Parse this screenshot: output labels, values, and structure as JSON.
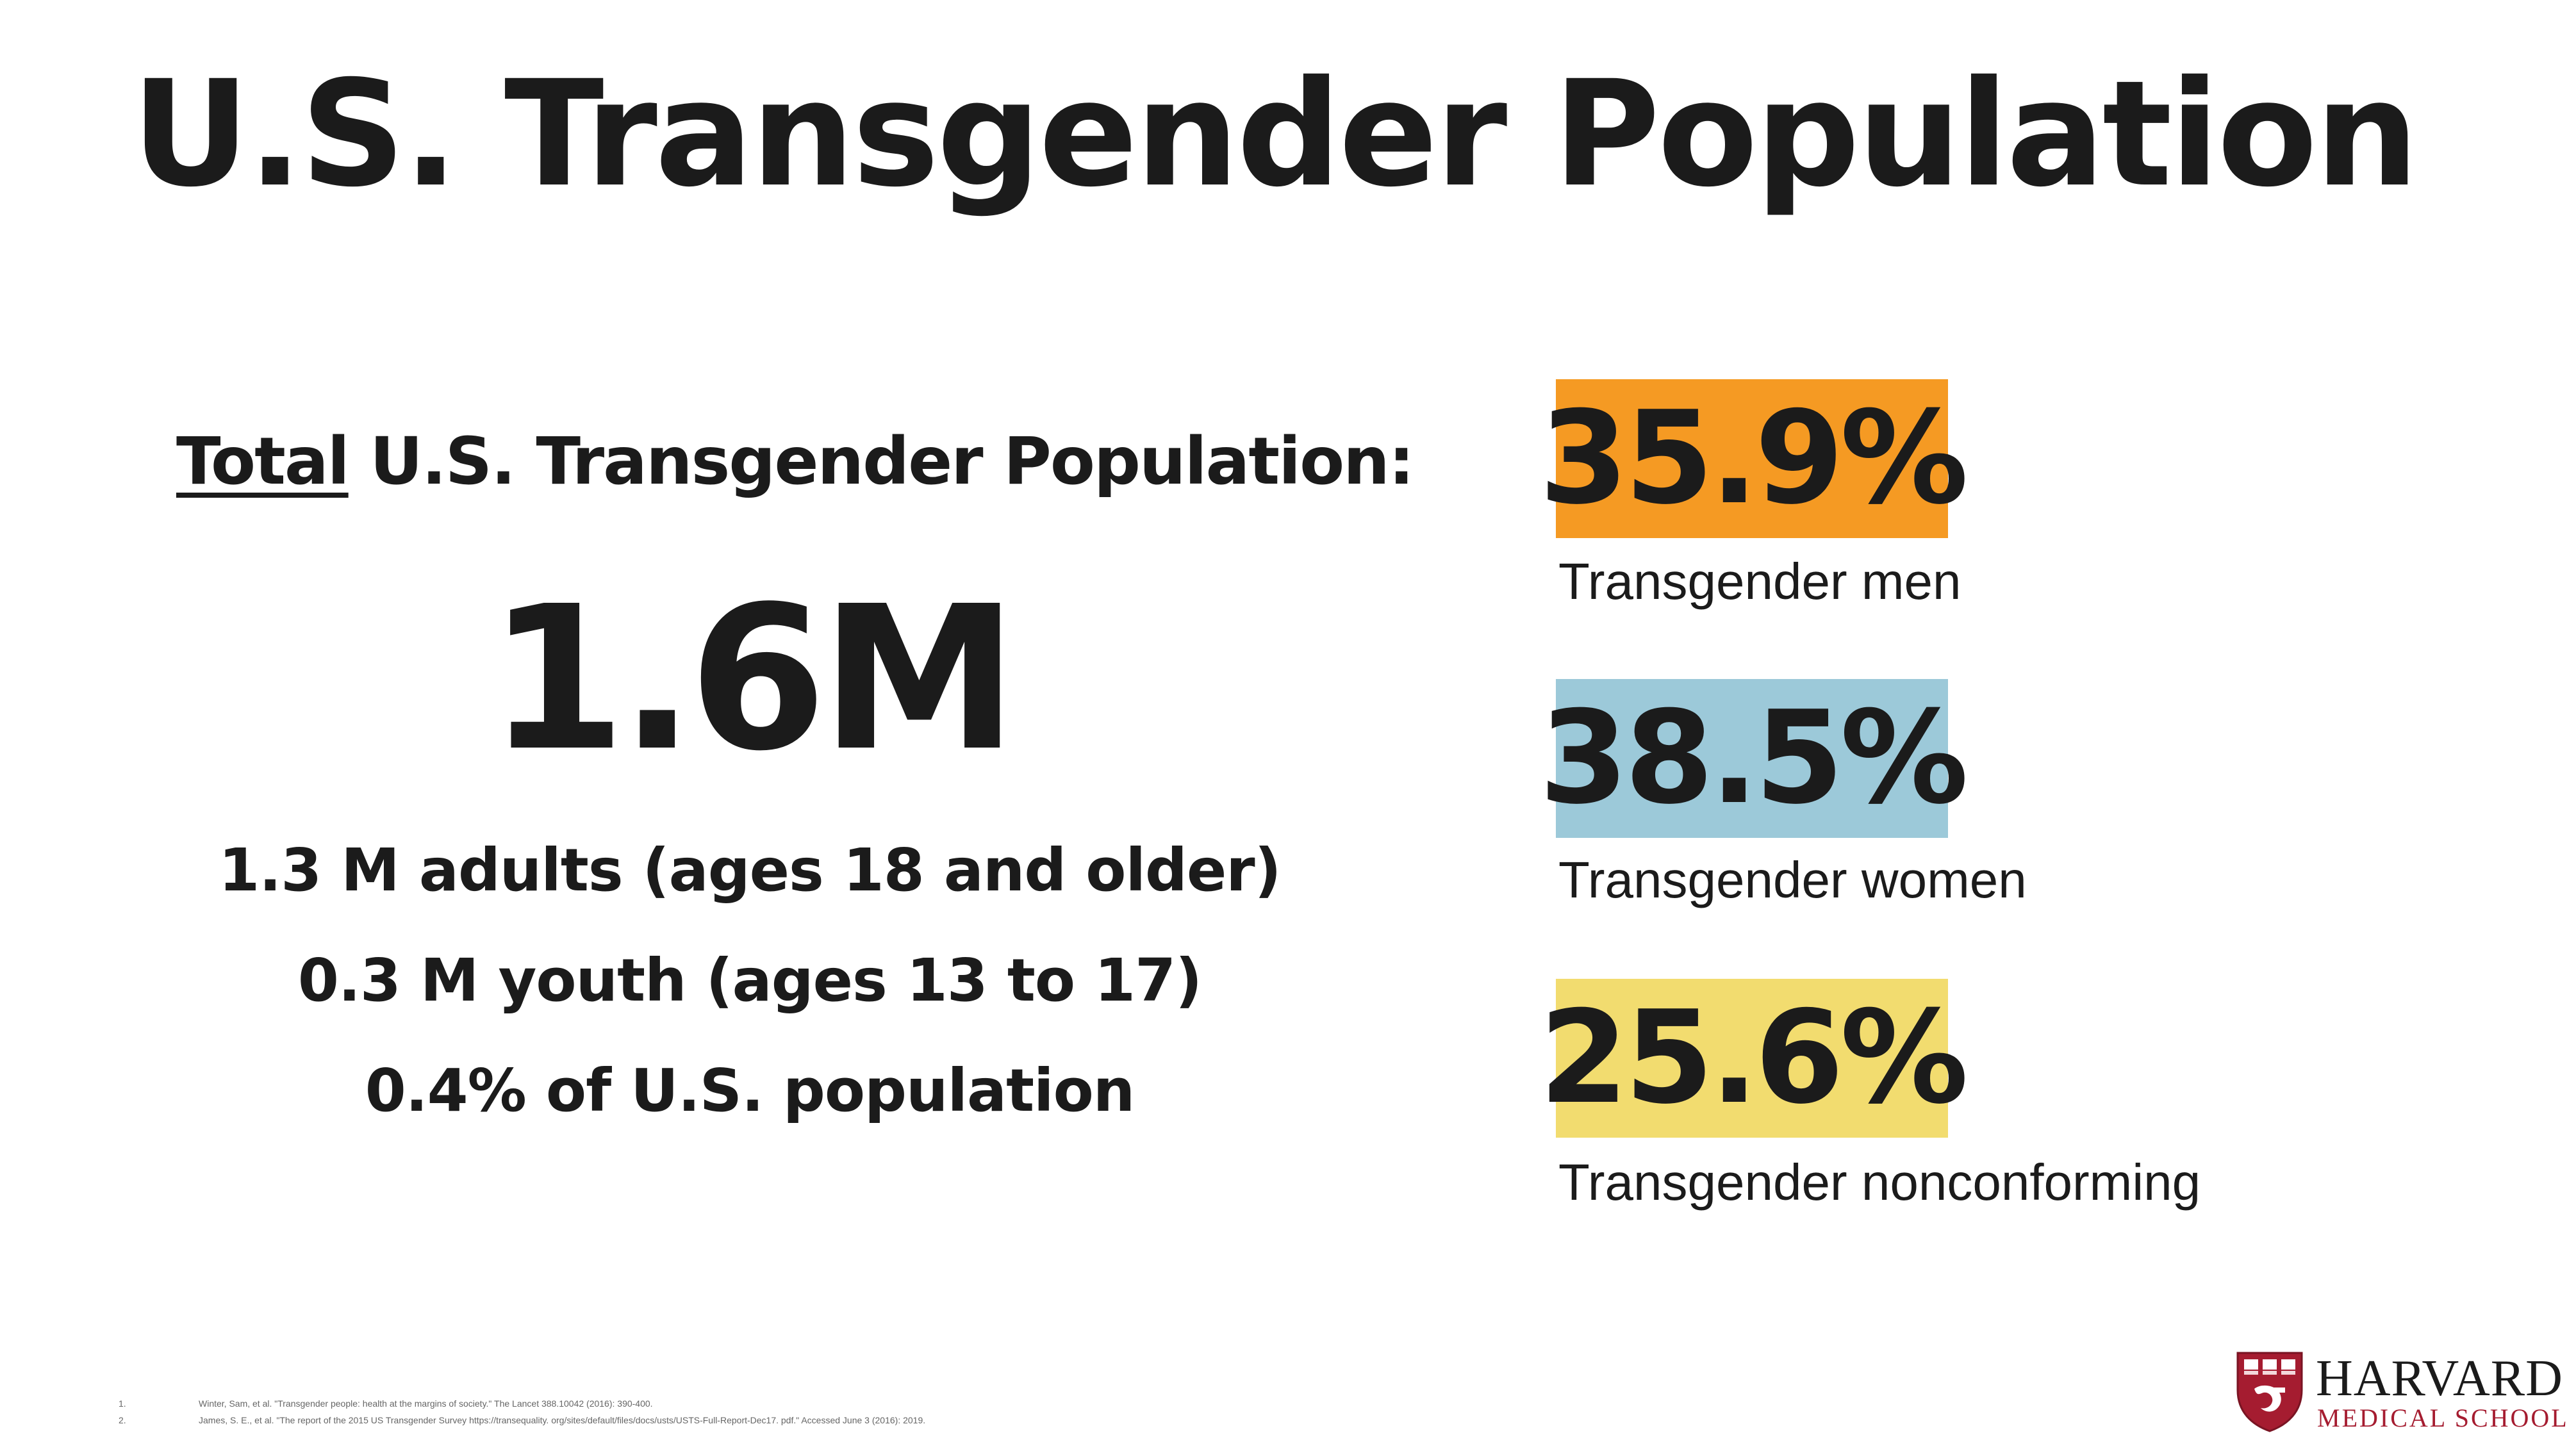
{
  "slide": {
    "title": "U.S. Transgender Population",
    "total_heading_underlined": "Total",
    "total_heading_rest": " U.S. Transgender Population:",
    "total_value": "1.6M",
    "breakdown": [
      "1.3 M adults (ages 18 and older)",
      "0.3 M youth (ages 13 to 17)",
      "0.4% of U.S. population"
    ]
  },
  "stats": [
    {
      "value": "35.9%",
      "label": "Transgender men",
      "color": "#f59a23"
    },
    {
      "value": "38.5%",
      "label": "Transgender women",
      "color": "#9cc9d9"
    },
    {
      "value": "25.6%",
      "label": "Transgender nonconforming",
      "color": "#f2dc6f"
    }
  ],
  "footnotes": [
    {
      "num": "1.",
      "text": "Winter, Sam, et al. \"Transgender people: health at the margins of society.\" The Lancet 388.10042 (2016): 390-400."
    },
    {
      "num": "2.",
      "text": "James, S. E., et al. \"The report of the 2015 US Transgender Survey https://transequality. org/sites/default/files/docs/usts/USTS-Full-Report-Dec17. pdf.\" Accessed June 3 (2016): 2019."
    }
  ],
  "logo": {
    "line1": "HARVARD",
    "line2": "MEDICAL SCHOOL",
    "shield_color": "#a51c30"
  }
}
